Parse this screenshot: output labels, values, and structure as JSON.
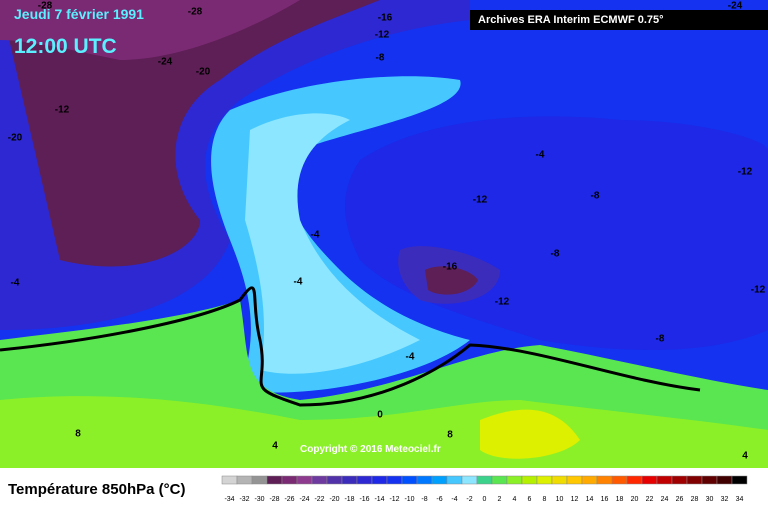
{
  "header": {
    "date": "Jeudi 7 février 1991",
    "time": "12:00 UTC",
    "source": "Archives ERA Interim ECMWF 0.75°"
  },
  "map": {
    "copyright": "Copyright © 2016 Meteociel.fr",
    "contour_labels": [
      "-28",
      "-28",
      "-16",
      "-12",
      "-24",
      "-20",
      "-8",
      "-12",
      "-20",
      "-4",
      "-12",
      "-12",
      "-8",
      "-4",
      "-8",
      "-16",
      "-4",
      "-4",
      "-12",
      "-12",
      "-8",
      "-4",
      "0",
      "8",
      "4",
      "4",
      "-24",
      "8"
    ]
  },
  "legend": {
    "title": "Température 850hPa (°C)",
    "labels": [
      -34,
      -32,
      -30,
      -28,
      -26,
      -24,
      -22,
      -20,
      -18,
      -16,
      -14,
      -12,
      -10,
      -8,
      -6,
      -4,
      -2,
      0,
      2,
      4,
      6,
      8,
      10,
      12,
      14,
      16,
      18,
      20,
      22,
      24,
      26,
      28,
      30,
      32,
      34
    ],
    "colors": [
      "#d4d4d4",
      "#b4b4b4",
      "#949494",
      "#5e1e56",
      "#7a2a72",
      "#8e3a8e",
      "#6e3aa0",
      "#5232a8",
      "#3c2cbc",
      "#2e28d2",
      "#1e28e6",
      "#1432f0",
      "#0050ff",
      "#0078ff",
      "#00a0ff",
      "#46c8ff",
      "#8ce6ff",
      "#3cd28c",
      "#5ae650",
      "#8cf028",
      "#b4f000",
      "#dcf000",
      "#f0dc00",
      "#ffc800",
      "#ffaa00",
      "#ff8200",
      "#ff5a00",
      "#ff2800",
      "#e60000",
      "#c00000",
      "#a00000",
      "#800000",
      "#600000",
      "#400000",
      "#000000"
    ]
  }
}
